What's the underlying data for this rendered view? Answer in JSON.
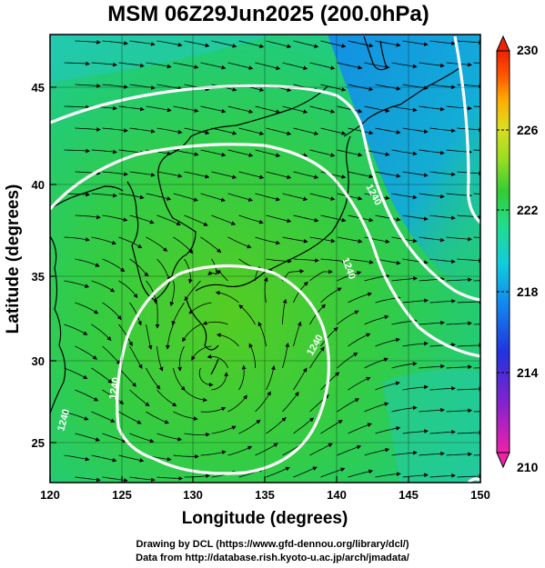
{
  "title": "MSM 06Z29Jun2025 (200.0hPa)",
  "axes": {
    "xlabel": "Longitude (degrees)",
    "ylabel": "Latitude  (degrees)",
    "x_ticks": [
      "120",
      "125",
      "130",
      "135",
      "140",
      "145",
      "150"
    ],
    "y_ticks": [
      "25",
      "30",
      "35",
      "40",
      "45"
    ],
    "xlim": [
      120,
      150
    ],
    "ylim": [
      22.4,
      47.6
    ]
  },
  "colorbar": {
    "ticks": [
      "210",
      "214",
      "218",
      "222",
      "226",
      "230"
    ],
    "range": [
      210,
      230
    ],
    "colors": [
      "#ee22aa",
      "#8822cc",
      "#2233dd",
      "#1188ee",
      "#11ccdd",
      "#22dd88",
      "#33cc33",
      "#99dd22",
      "#dddd22",
      "#ffaa00",
      "#ff5500",
      "#ee2200"
    ]
  },
  "contours": {
    "labels": [
      "1240",
      "1240",
      "1240",
      "1240",
      "1240"
    ]
  },
  "footer": {
    "line1": "Drawing by DCL (https://www.gfd-dennou.org/library/dcl/)",
    "line2": "Data from http://database.rish.kyoto-u.ac.jp/arch/jmadata/"
  }
}
